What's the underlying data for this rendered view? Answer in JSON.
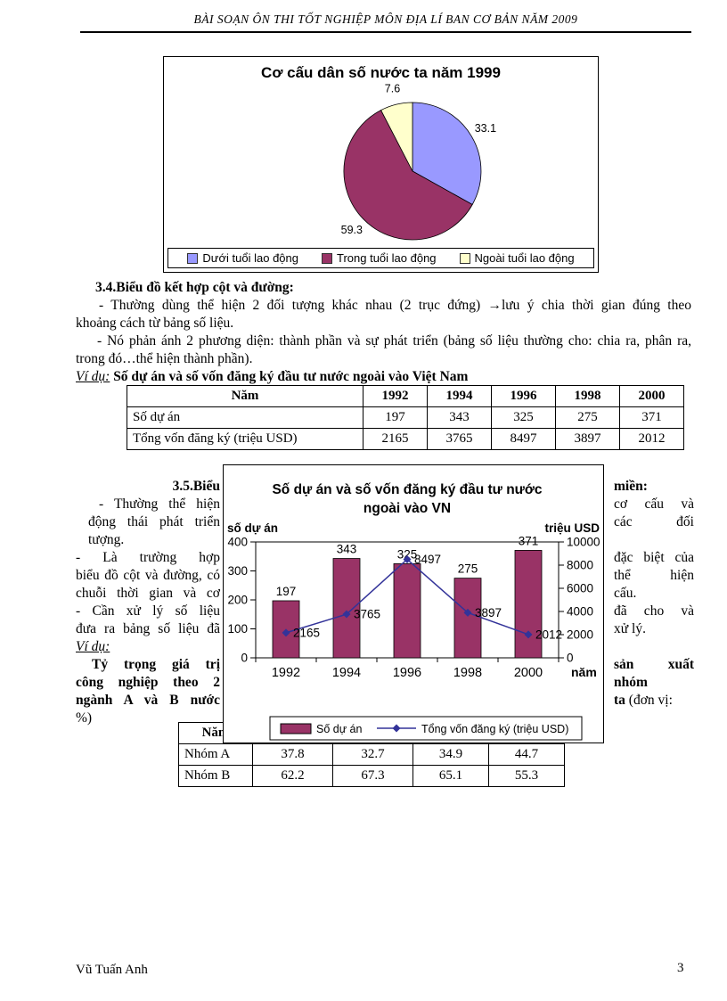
{
  "header": {
    "title": "BÀI SOẠN ÔN THI TỐT NGHIỆP MÔN ĐỊA LÍ BAN CƠ BẢN NĂM 2009"
  },
  "chart_data": [
    {
      "type": "pie",
      "title": "Cơ cấu dân số nước ta năm 1999",
      "labels": [
        "Dưới tuổi lao động",
        "Trong tuổi lao động",
        "Ngoài tuổi lao động"
      ],
      "values": [
        33.1,
        59.3,
        7.6
      ],
      "colors": [
        "#9999ff",
        "#993366",
        "#ffffcc"
      ],
      "legend_position": "bottom"
    },
    {
      "type": "bar+line",
      "title_lines": [
        "Số dự án và số vốn đăng ký đầu tư nước",
        "ngoài vào VN"
      ],
      "categories": [
        "1992",
        "1994",
        "1996",
        "1998",
        "2000"
      ],
      "x_axis_label": "năm",
      "left_axis": {
        "label": "số dự án",
        "min": 0,
        "max": 400,
        "ticks": [
          0,
          100,
          200,
          300,
          400
        ]
      },
      "right_axis": {
        "label": "triệu USD",
        "min": 0,
        "max": 10000,
        "ticks": [
          0,
          2000,
          4000,
          6000,
          8000,
          10000
        ]
      },
      "series": [
        {
          "name": "Số dự án",
          "type": "bar",
          "axis": "left",
          "color": "#993366",
          "values": [
            197,
            343,
            325,
            275,
            371
          ]
        },
        {
          "name": "Tổng vốn đăng ký (triệu USD)",
          "type": "line",
          "axis": "right",
          "color": "#333399",
          "values": [
            2165,
            3765,
            8497,
            3897,
            2012
          ]
        }
      ],
      "legend_position": "bottom"
    }
  ],
  "section_34": {
    "lines": [
      {
        "text": "3.4.Biểu đồ kết hợp  cột và đường:",
        "bold": true,
        "indent": 22
      },
      {
        "text": "- Thường dùng thể hiện 2 đối tượng khác nhau (2 trục đứng) →lưu ý chia thời gian đúng theo",
        "indent": 26,
        "justify": true
      },
      {
        "text": "khoảng cách từ bảng số liệu."
      },
      {
        "text": "- Nó phản ánh 2 phương diện: thành phần và sự phát triển (bảng số liệu thường cho: chia ra, phân ra,",
        "indent": 24,
        "justify": true
      },
      {
        "text": "trong đó…thể hiện thành phần)."
      }
    ],
    "example_label": "Ví dụ:",
    "example_title": " Số dự án và số vốn đăng ký đầu tư nước ngoài vào Việt Nam"
  },
  "table1": {
    "col_headers": [
      "Năm",
      "1992",
      "1994",
      "1996",
      "1998",
      "2000"
    ],
    "rows": [
      {
        "label": "Số dự án",
        "values": [
          "197",
          "343",
          "325",
          "275",
          "371"
        ]
      },
      {
        "label": "Tổng vốn đăng ký (triệu  USD)",
        "values": [
          "2165",
          "3765",
          "8497",
          "3897",
          "2012"
        ]
      }
    ]
  },
  "section_35": {
    "left_lines": [
      {
        "text": "3.5.Biểu",
        "bold": true,
        "align": "right"
      },
      {
        "text": "- Thường thể hiện",
        "justify": true,
        "indent": 26
      },
      {
        "text": "động thái phát triển",
        "justify": true,
        "indent": 14
      },
      {
        "text": "tượng.",
        "indent": 14
      },
      {
        "text": "- Là trường hợp",
        "justify": true
      },
      {
        "text": "biểu đồ cột và đường, có",
        "justify": true
      },
      {
        "text": "chuỗi thời gian và cơ",
        "justify": true
      },
      {
        "text": "- Cần xử lý số liệu",
        "justify": true
      },
      {
        "text": "đưa ra bảng số liệu đã",
        "justify": true
      },
      {
        "text": "Ví dụ:",
        "italic": true,
        "underline": true
      },
      {
        "text": "Tỷ trọng giá trị",
        "bold": true,
        "justify": true,
        "indent": 18
      },
      {
        "text": "công nghiệp theo 2",
        "bold": true,
        "justify": true
      },
      {
        "text": "ngành A và B nước",
        "bold": true,
        "justify": true
      },
      {
        "text": "%)"
      }
    ],
    "right_lines": [
      {
        "text": "miền:",
        "bold": true
      },
      {
        "text": "cơ cấu và",
        "justify": true
      },
      {
        "text": "các đối",
        "justify": true
      },
      {
        "text": ""
      },
      {
        "text": "đặc biệt của",
        "justify": true
      },
      {
        "text": "thể hiện",
        "justify": true
      },
      {
        "text": "cấu."
      },
      {
        "text": "đã cho và",
        "justify": true
      },
      {
        "text": "xử lý."
      },
      {
        "text": ""
      },
      {
        "text": "sản xuất",
        "bold": true,
        "justify": true
      },
      {
        "text": "nhóm",
        "bold": true
      },
      {
        "parts": [
          {
            "text": "ta ",
            "bold": true
          },
          {
            "text": "(đơn vị:"
          }
        ]
      },
      {
        "text": ""
      }
    ]
  },
  "table2": {
    "col_headers": [
      "Năm",
      "",
      "",
      "",
      ""
    ],
    "rows": [
      {
        "label": "Nhóm A",
        "values": [
          "37.8",
          "32.7",
          "34.9",
          "44.7"
        ]
      },
      {
        "label": "Nhóm B",
        "values": [
          "62.2",
          "67.3",
          "65.1",
          "55.3"
        ]
      }
    ]
  },
  "footer": {
    "author": "Vũ Tuấn Anh",
    "page_number": "3"
  }
}
